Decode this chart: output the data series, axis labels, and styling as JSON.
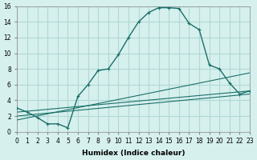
{
  "xlabel": "Humidex (Indice chaleur)",
  "bg_color": "#d6f0ee",
  "grid_color": "#b0d8d4",
  "line_color": "#1a7068",
  "xlim": [
    0,
    23
  ],
  "ylim": [
    0,
    16
  ],
  "xticks": [
    0,
    1,
    2,
    3,
    4,
    5,
    6,
    7,
    8,
    9,
    10,
    11,
    12,
    13,
    14,
    15,
    16,
    17,
    18,
    19,
    20,
    21,
    22,
    23
  ],
  "yticks": [
    0,
    2,
    4,
    6,
    8,
    10,
    12,
    14,
    16
  ],
  "line1_x": [
    0,
    1,
    2,
    3,
    4,
    5,
    6,
    7,
    8,
    9,
    10,
    11,
    12,
    13,
    14,
    15,
    16,
    17,
    18,
    19,
    20,
    21,
    22,
    23
  ],
  "line1_y": [
    3.0,
    2.5,
    1.8,
    1.0,
    1.0,
    0.5,
    4.5,
    6.0,
    7.8,
    8.0,
    9.8,
    12.0,
    14.0,
    15.2,
    15.8,
    15.8,
    15.7,
    13.8,
    13.0,
    8.5,
    8.0,
    6.2,
    4.8,
    5.2
  ],
  "line2_x": [
    0,
    23
  ],
  "line2_y": [
    2.5,
    5.2
  ],
  "line3_x": [
    0,
    23
  ],
  "line3_y": [
    2.0,
    4.8
  ],
  "line4_x": [
    0,
    23
  ],
  "line4_y": [
    1.5,
    7.5
  ]
}
